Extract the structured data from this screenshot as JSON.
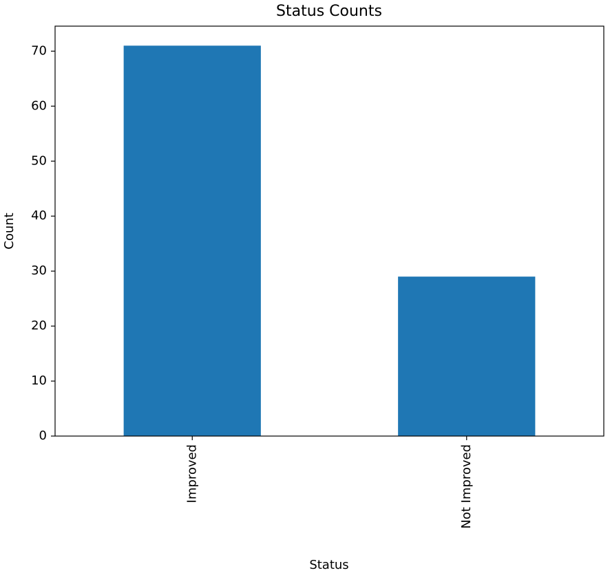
{
  "chart_data": {
    "type": "bar",
    "title": "Status Counts",
    "x_label": "Status",
    "y_label": "Count",
    "categories": [
      "Improved",
      "Not Improved"
    ],
    "values": [
      71,
      29
    ],
    "color": "#1f77b4",
    "ylim": [
      0,
      74.55
    ],
    "yticks": [
      0,
      10,
      20,
      30,
      40,
      50,
      60,
      70
    ],
    "grid": false
  }
}
